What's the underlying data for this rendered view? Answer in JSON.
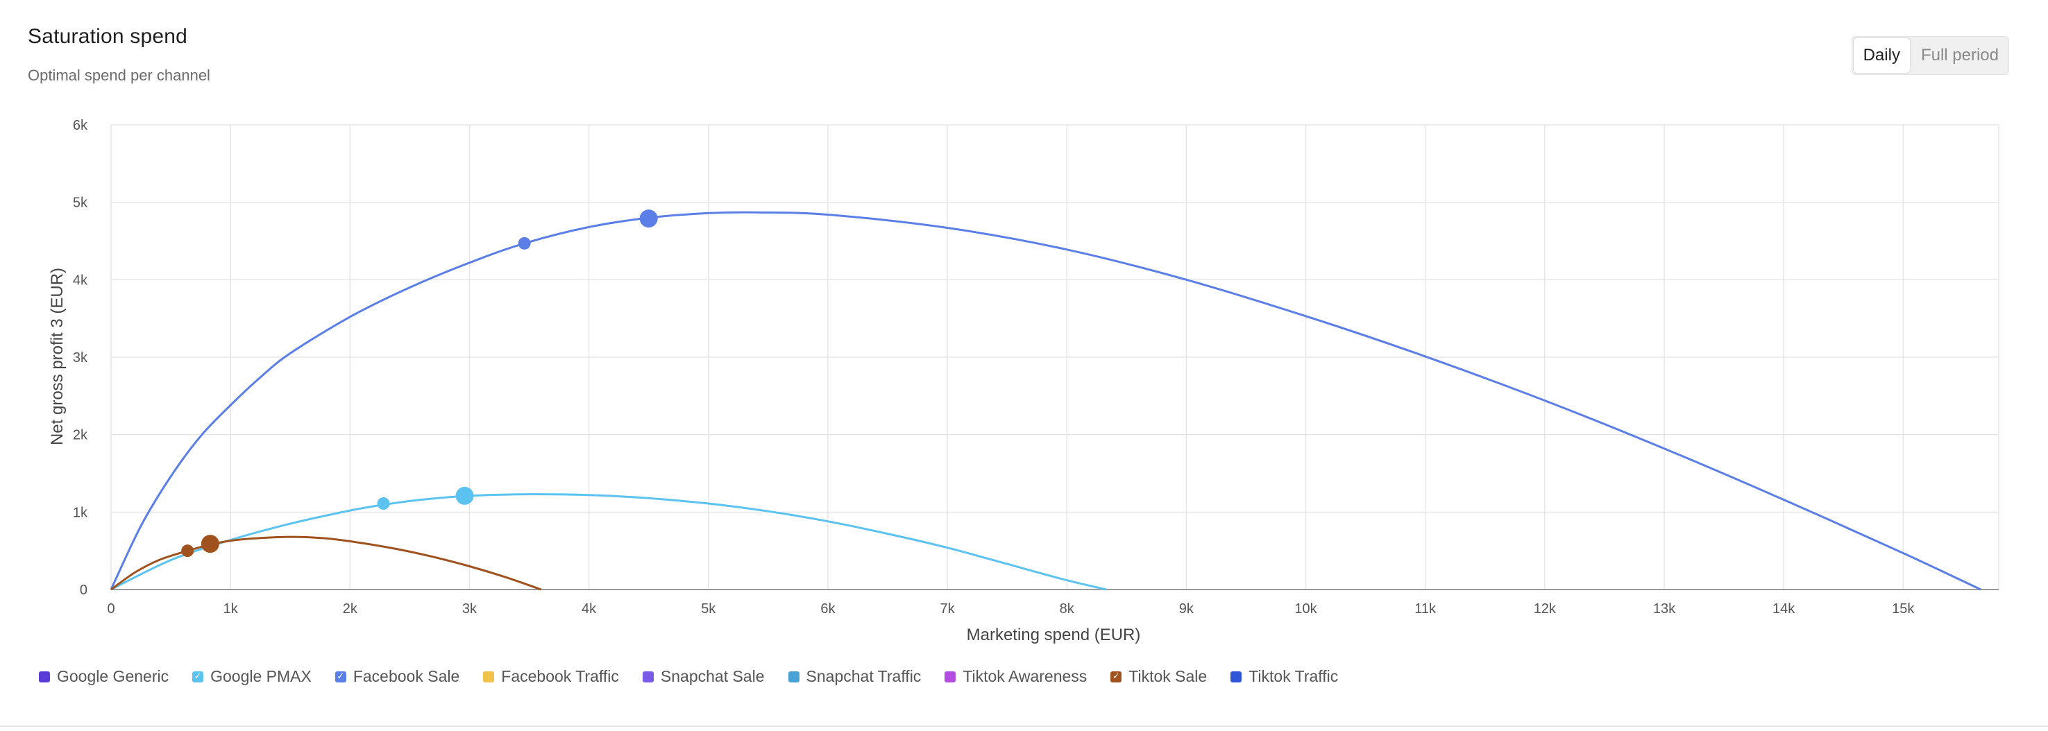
{
  "header": {
    "title": "Saturation spend",
    "subtitle": "Optimal spend per channel"
  },
  "toggle": {
    "options": [
      {
        "label": "Daily",
        "active": true
      },
      {
        "label": "Full period",
        "active": false
      }
    ]
  },
  "legend": {
    "items": [
      {
        "label": "Google Generic",
        "color": "#5a3bd6",
        "checked": false
      },
      {
        "label": "Google PMAX",
        "color": "#5cc3f0",
        "checked": true
      },
      {
        "label": "Facebook Sale",
        "color": "#5b7fe6",
        "checked": true
      },
      {
        "label": "Facebook Traffic",
        "color": "#f0c24a",
        "checked": false
      },
      {
        "label": "Snapchat Sale",
        "color": "#7a5ae8",
        "checked": false
      },
      {
        "label": "Snapchat Traffic",
        "color": "#4aa3d6",
        "checked": false
      },
      {
        "label": "Tiktok Awareness",
        "color": "#b34de0",
        "checked": false
      },
      {
        "label": "Tiktok Sale",
        "color": "#a0521e",
        "checked": true
      },
      {
        "label": "Tiktok Traffic",
        "color": "#3056d8",
        "checked": false
      }
    ]
  },
  "chart_data": {
    "type": "line",
    "xlabel": "Marketing spend (EUR)",
    "ylabel": "Net gross profit 3 (EUR)",
    "xlim": [
      0,
      15800
    ],
    "ylim": [
      0,
      6000
    ],
    "x_ticks": [
      0,
      1000,
      2000,
      3000,
      4000,
      5000,
      6000,
      7000,
      8000,
      9000,
      10000,
      11000,
      12000,
      13000,
      14000,
      15000
    ],
    "x_tick_labels": [
      "0",
      "1k",
      "2k",
      "3k",
      "4k",
      "5k",
      "6k",
      "7k",
      "8k",
      "9k",
      "10k",
      "11k",
      "12k",
      "13k",
      "14k",
      "15k"
    ],
    "y_ticks": [
      0,
      1000,
      2000,
      3000,
      4000,
      5000,
      6000
    ],
    "y_tick_labels": [
      "0",
      "1k",
      "2k",
      "3k",
      "4k",
      "5k",
      "6k"
    ],
    "grid": true,
    "legend_position": "bottom-left",
    "series": [
      {
        "name": "Facebook Sale",
        "color": "#5b7fe6",
        "x": [
          0,
          250,
          500,
          750,
          1000,
          1250,
          1500,
          2000,
          2500,
          3000,
          3460,
          4000,
          4500,
          5000,
          5400,
          6000,
          7000,
          8000,
          9000,
          10000,
          11000,
          12000,
          13000,
          14000,
          15000,
          15650
        ],
        "y": [
          0,
          820,
          1460,
          1980,
          2380,
          2740,
          3050,
          3520,
          3900,
          4220,
          4470,
          4680,
          4800,
          4860,
          4870,
          4840,
          4670,
          4390,
          4000,
          3530,
          3010,
          2440,
          1820,
          1160,
          470,
          0
        ],
        "markers": [
          {
            "x": 3460,
            "y": 4470,
            "size": "small"
          },
          {
            "x": 4500,
            "y": 4790,
            "size": "large"
          }
        ]
      },
      {
        "name": "Google PMAX",
        "color": "#5cc3f0",
        "x": [
          0,
          500,
          1000,
          1500,
          2000,
          2300,
          2600,
          3000,
          3500,
          4000,
          4500,
          5000,
          5500,
          6000,
          6500,
          7000,
          7500,
          8000,
          8330
        ],
        "y": [
          0,
          380,
          640,
          850,
          1020,
          1100,
          1160,
          1210,
          1230,
          1220,
          1180,
          1110,
          1010,
          880,
          720,
          540,
          330,
          120,
          0
        ],
        "markers": [
          {
            "x": 2280,
            "y": 1110,
            "size": "small"
          },
          {
            "x": 2960,
            "y": 1210,
            "size": "large"
          }
        ]
      },
      {
        "name": "Tiktok Sale",
        "color": "#a0521e",
        "x": [
          0,
          200,
          400,
          640,
          830,
          1000,
          1200,
          1500,
          1800,
          2100,
          2400,
          2700,
          3000,
          3300,
          3600
        ],
        "y": [
          0,
          220,
          380,
          500,
          580,
          630,
          660,
          680,
          660,
          600,
          520,
          420,
          300,
          160,
          0
        ],
        "markers": [
          {
            "x": 640,
            "y": 500,
            "size": "small"
          },
          {
            "x": 830,
            "y": 590,
            "size": "large"
          }
        ]
      }
    ]
  }
}
